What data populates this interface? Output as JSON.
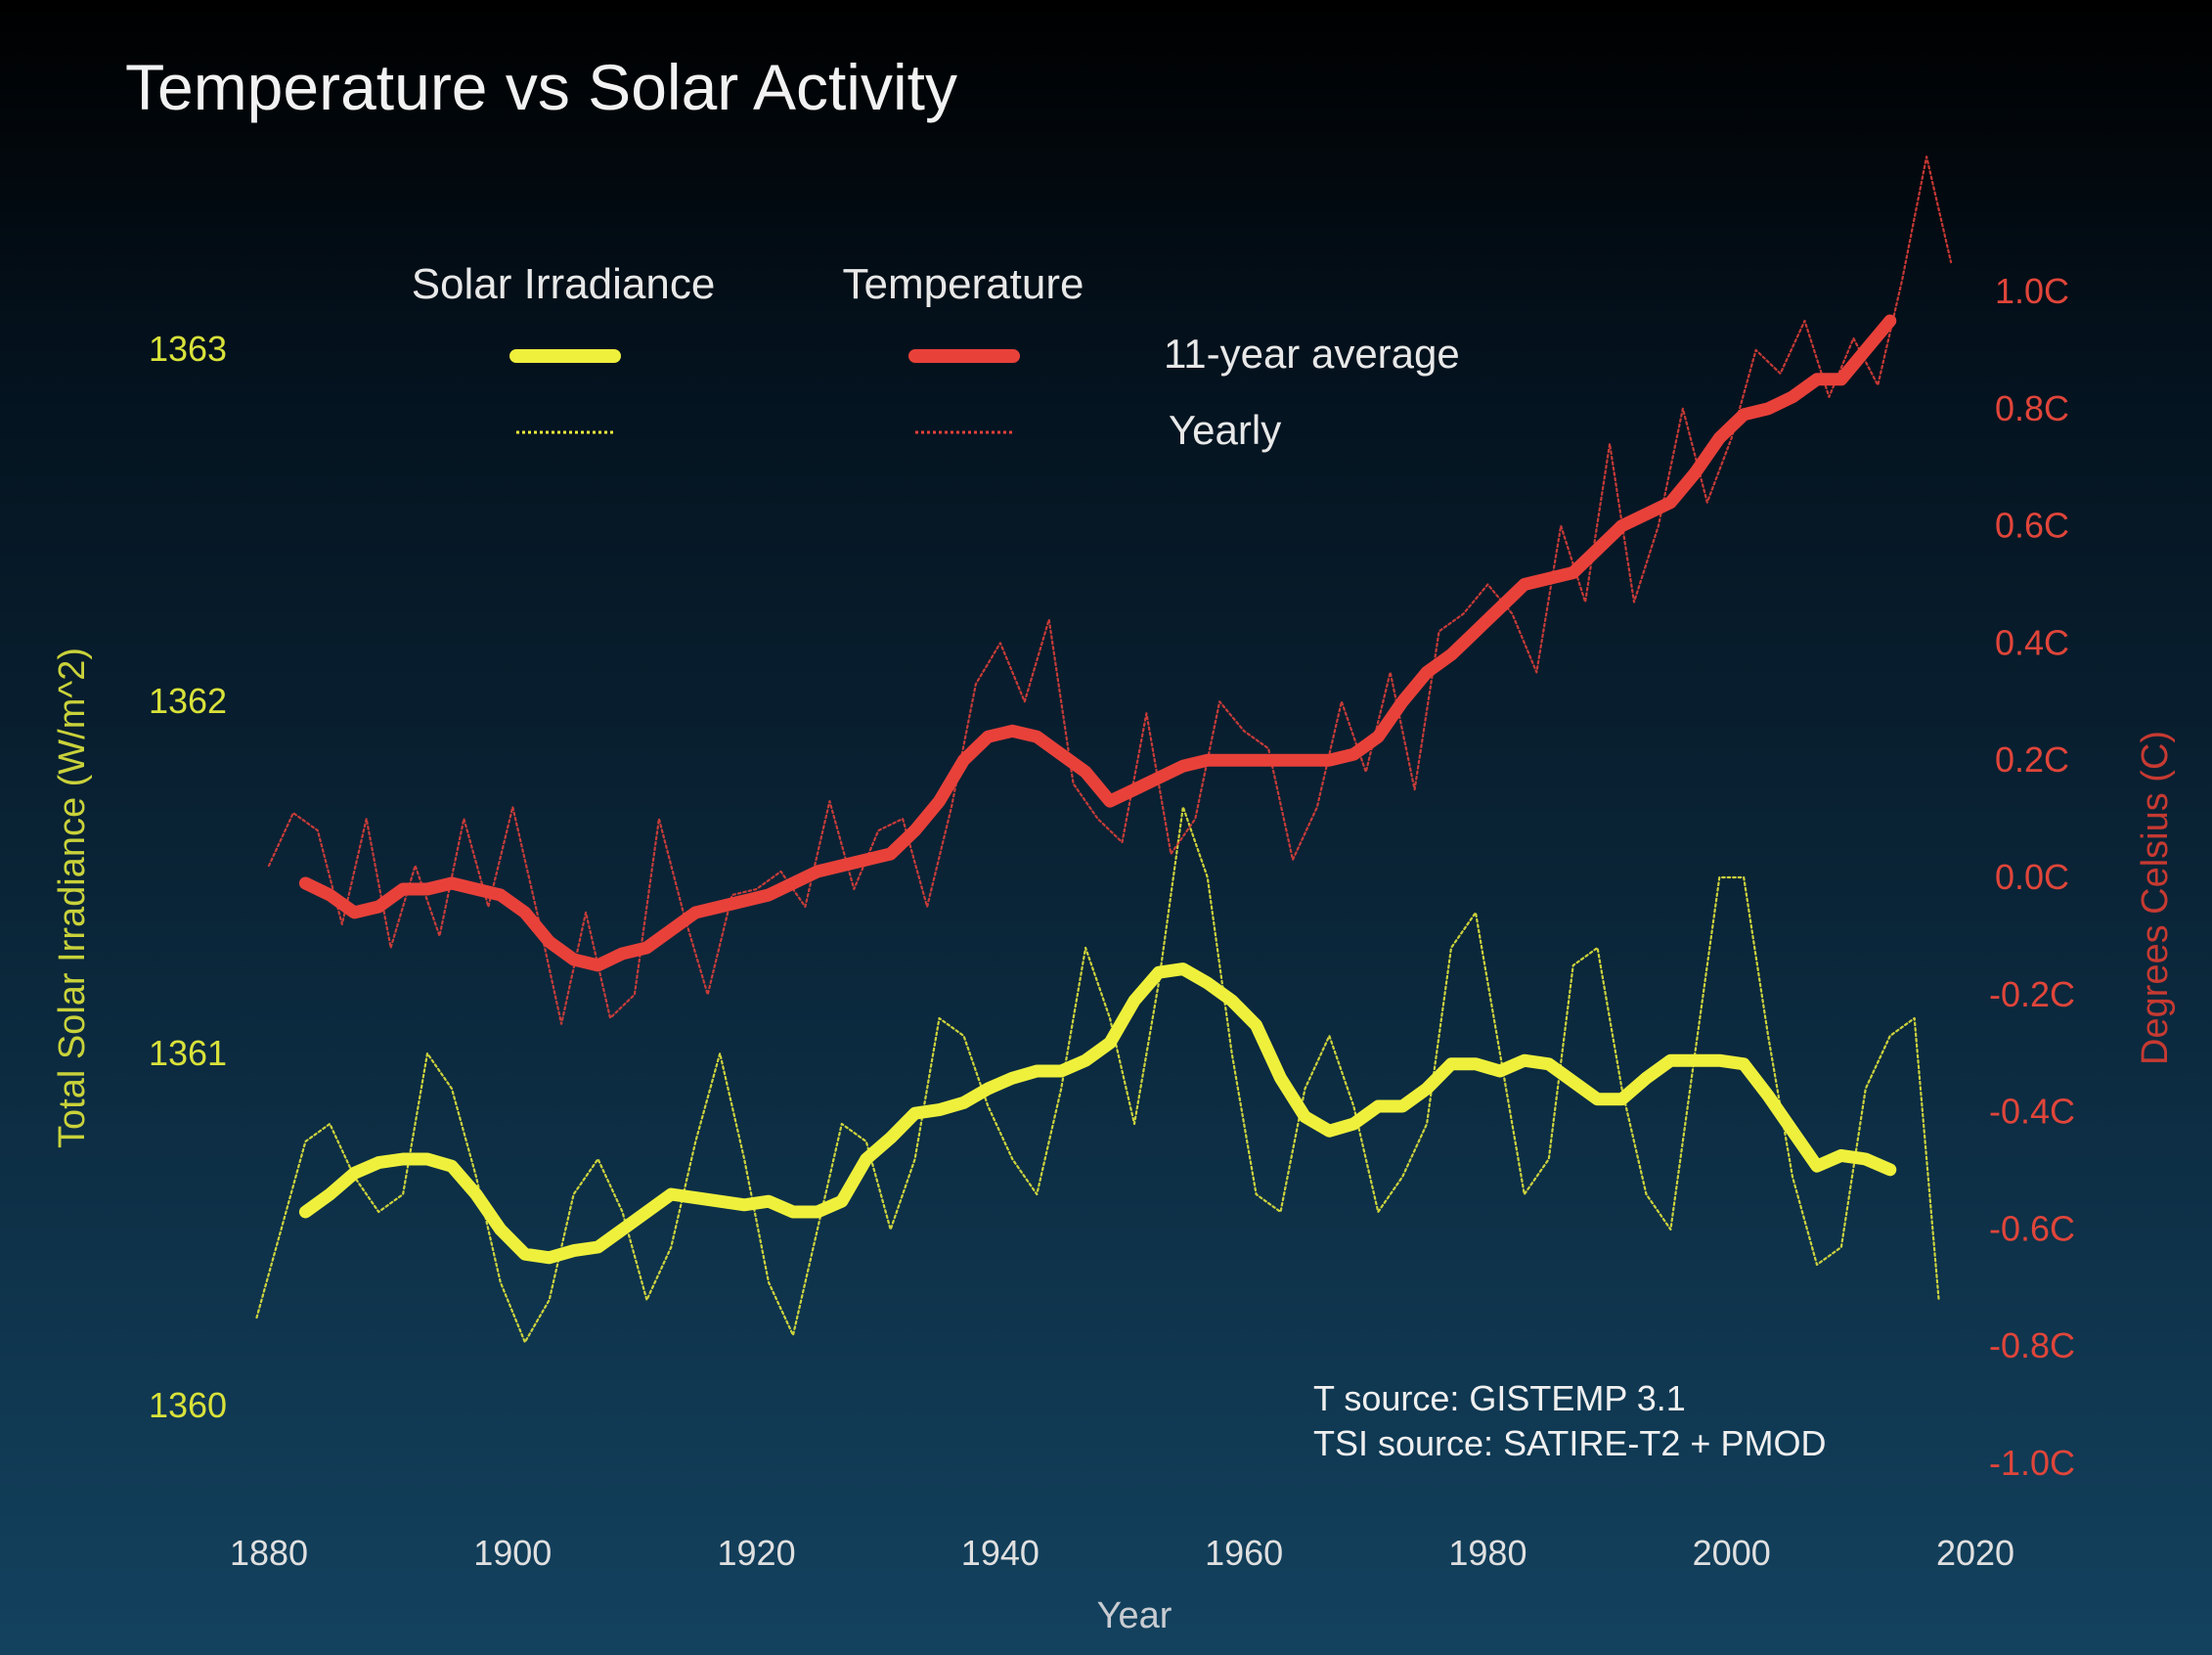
{
  "colors": {
    "solar": "#eef03c",
    "temperature": "#e8413a",
    "solar_tick": "#d9e23a",
    "temp_tick": "#e0453a"
  },
  "chart_data": {
    "type": "line",
    "title": "Temperature vs Solar Activity",
    "xlabel": "Year",
    "ylabel_left": "Total Solar Irradiance (W/m^2)",
    "ylabel_right": "Degrees Celsius (C)",
    "xlim": [
      1880,
      2020
    ],
    "ylim_left": [
      1360,
      1363
    ],
    "ylim_right": [
      -1.0,
      1.0
    ],
    "x_ticks": [
      "1880",
      "1900",
      "1920",
      "1940",
      "1960",
      "1980",
      "2000",
      "2020"
    ],
    "left_ticks": [
      "1360",
      "1361",
      "1362",
      "1363"
    ],
    "right_ticks": [
      "-1.0C",
      "-0.8C",
      "-0.6C",
      "-0.4C",
      "-0.2C",
      "0.0C",
      "0.2C",
      "0.4C",
      "0.6C",
      "0.8C",
      "1.0C"
    ],
    "grid": false,
    "legend": {
      "placement": "top-center",
      "headers": [
        "Solar Irradiance",
        "Temperature"
      ],
      "rows": [
        "11-year average",
        "Yearly"
      ]
    },
    "annotations": [
      "T source: GISTEMP 3.1",
      "TSI source: SATIRE-T2 + PMOD"
    ],
    "series": [
      {
        "name": "Solar Irradiance 11-year average",
        "axis": "left",
        "style": "thick",
        "x": [
          1883,
          1885,
          1887,
          1889,
          1891,
          1893,
          1895,
          1897,
          1899,
          1901,
          1903,
          1905,
          1907,
          1909,
          1911,
          1913,
          1915,
          1917,
          1919,
          1921,
          1923,
          1925,
          1927,
          1929,
          1931,
          1933,
          1935,
          1937,
          1939,
          1941,
          1943,
          1945,
          1947,
          1949,
          1951,
          1953,
          1955,
          1957,
          1959,
          1961,
          1963,
          1965,
          1967,
          1969,
          1971,
          1973,
          1975,
          1977,
          1979,
          1981,
          1983,
          1985,
          1987,
          1989,
          1991,
          1993,
          1995,
          1997,
          1999,
          2001,
          2003,
          2005,
          2007,
          2009,
          2011,
          2013
        ],
        "values": [
          1360.55,
          1360.6,
          1360.66,
          1360.69,
          1360.7,
          1360.7,
          1360.68,
          1360.6,
          1360.5,
          1360.43,
          1360.42,
          1360.44,
          1360.45,
          1360.5,
          1360.55,
          1360.6,
          1360.59,
          1360.58,
          1360.57,
          1360.58,
          1360.55,
          1360.55,
          1360.58,
          1360.7,
          1360.76,
          1360.83,
          1360.84,
          1360.86,
          1360.9,
          1360.93,
          1360.95,
          1360.95,
          1360.98,
          1361.03,
          1361.15,
          1361.23,
          1361.24,
          1361.2,
          1361.15,
          1361.08,
          1360.93,
          1360.82,
          1360.78,
          1360.8,
          1360.85,
          1360.85,
          1360.9,
          1360.97,
          1360.97,
          1360.95,
          1360.98,
          1360.97,
          1360.92,
          1360.87,
          1360.87,
          1360.93,
          1360.98,
          1360.98,
          1360.98,
          1360.97,
          1360.88,
          1360.78,
          1360.68,
          1360.71,
          1360.7,
          1360.67
        ]
      },
      {
        "name": "Solar Irradiance Yearly",
        "axis": "left",
        "style": "dotted",
        "x": [
          1879,
          1881,
          1883,
          1885,
          1887,
          1889,
          1891,
          1893,
          1895,
          1897,
          1899,
          1901,
          1903,
          1905,
          1907,
          1909,
          1911,
          1913,
          1915,
          1917,
          1919,
          1921,
          1923,
          1925,
          1927,
          1929,
          1931,
          1933,
          1935,
          1937,
          1939,
          1941,
          1943,
          1945,
          1947,
          1949,
          1951,
          1953,
          1955,
          1957,
          1959,
          1961,
          1963,
          1965,
          1967,
          1969,
          1971,
          1973,
          1975,
          1977,
          1979,
          1981,
          1983,
          1985,
          1987,
          1989,
          1991,
          1993,
          1995,
          1997,
          1999,
          2001,
          2003,
          2005,
          2007,
          2009,
          2011,
          2013,
          2015,
          2017
        ],
        "values": [
          1360.25,
          1360.5,
          1360.75,
          1360.8,
          1360.65,
          1360.55,
          1360.6,
          1361.0,
          1360.9,
          1360.65,
          1360.35,
          1360.18,
          1360.3,
          1360.6,
          1360.7,
          1360.55,
          1360.3,
          1360.45,
          1360.75,
          1361.0,
          1360.7,
          1360.35,
          1360.2,
          1360.5,
          1360.8,
          1360.75,
          1360.5,
          1360.7,
          1361.1,
          1361.05,
          1360.85,
          1360.7,
          1360.6,
          1360.9,
          1361.3,
          1361.1,
          1360.8,
          1361.2,
          1361.7,
          1361.5,
          1361.0,
          1360.6,
          1360.55,
          1360.9,
          1361.05,
          1360.85,
          1360.55,
          1360.65,
          1360.8,
          1361.3,
          1361.4,
          1361.0,
          1360.6,
          1360.7,
          1361.25,
          1361.3,
          1360.9,
          1360.6,
          1360.5,
          1361.0,
          1361.5,
          1361.5,
          1361.05,
          1360.65,
          1360.4,
          1360.45,
          1360.9,
          1361.05,
          1361.1,
          1360.3
        ]
      },
      {
        "name": "Temperature 11-year average",
        "axis": "right",
        "style": "thick",
        "x": [
          1883,
          1885,
          1887,
          1889,
          1891,
          1893,
          1895,
          1897,
          1899,
          1901,
          1903,
          1905,
          1907,
          1909,
          1911,
          1913,
          1915,
          1917,
          1919,
          1921,
          1923,
          1925,
          1927,
          1929,
          1931,
          1933,
          1935,
          1937,
          1939,
          1941,
          1943,
          1945,
          1947,
          1949,
          1951,
          1953,
          1955,
          1957,
          1959,
          1961,
          1963,
          1965,
          1967,
          1969,
          1971,
          1973,
          1975,
          1977,
          1979,
          1981,
          1983,
          1985,
          1987,
          1989,
          1991,
          1993,
          1995,
          1997,
          1999,
          2001,
          2003,
          2005,
          2007,
          2009,
          2011,
          2013
        ],
        "values": [
          -0.01,
          -0.03,
          -0.06,
          -0.05,
          -0.02,
          -0.02,
          -0.01,
          -0.02,
          -0.03,
          -0.06,
          -0.11,
          -0.14,
          -0.15,
          -0.13,
          -0.12,
          -0.09,
          -0.06,
          -0.05,
          -0.04,
          -0.03,
          -0.01,
          0.01,
          0.02,
          0.03,
          0.04,
          0.08,
          0.13,
          0.2,
          0.24,
          0.25,
          0.24,
          0.21,
          0.18,
          0.13,
          0.15,
          0.17,
          0.19,
          0.2,
          0.2,
          0.2,
          0.2,
          0.2,
          0.2,
          0.21,
          0.24,
          0.3,
          0.35,
          0.38,
          0.42,
          0.46,
          0.5,
          0.51,
          0.52,
          0.56,
          0.6,
          0.62,
          0.64,
          0.69,
          0.75,
          0.79,
          0.8,
          0.82,
          0.85,
          0.85,
          0.9,
          0.95
        ]
      },
      {
        "name": "Temperature Yearly",
        "axis": "right",
        "style": "dotted",
        "x": [
          1880,
          1882,
          1884,
          1886,
          1888,
          1890,
          1892,
          1894,
          1896,
          1898,
          1900,
          1902,
          1904,
          1906,
          1908,
          1910,
          1912,
          1914,
          1916,
          1918,
          1920,
          1922,
          1924,
          1926,
          1928,
          1930,
          1932,
          1934,
          1936,
          1938,
          1940,
          1942,
          1944,
          1946,
          1948,
          1950,
          1952,
          1954,
          1956,
          1958,
          1960,
          1962,
          1964,
          1966,
          1968,
          1970,
          1972,
          1974,
          1976,
          1978,
          1980,
          1982,
          1984,
          1986,
          1988,
          1990,
          1992,
          1994,
          1996,
          1998,
          2000,
          2002,
          2004,
          2006,
          2008,
          2010,
          2012,
          2014,
          2016,
          2018
        ],
        "values": [
          0.02,
          0.11,
          0.08,
          -0.08,
          0.1,
          -0.12,
          0.02,
          -0.1,
          0.1,
          -0.05,
          0.12,
          -0.06,
          -0.25,
          -0.06,
          -0.24,
          -0.2,
          0.1,
          -0.06,
          -0.2,
          -0.03,
          -0.02,
          0.01,
          -0.05,
          0.13,
          -0.02,
          0.08,
          0.1,
          -0.05,
          0.12,
          0.33,
          0.4,
          0.3,
          0.44,
          0.16,
          0.1,
          0.06,
          0.28,
          0.04,
          0.1,
          0.3,
          0.25,
          0.22,
          0.03,
          0.12,
          0.3,
          0.18,
          0.35,
          0.15,
          0.42,
          0.45,
          0.5,
          0.45,
          0.35,
          0.6,
          0.47,
          0.74,
          0.47,
          0.6,
          0.8,
          0.64,
          0.75,
          0.9,
          0.86,
          0.95,
          0.82,
          0.92,
          0.84,
          1.02,
          1.23,
          1.05
        ]
      }
    ]
  }
}
